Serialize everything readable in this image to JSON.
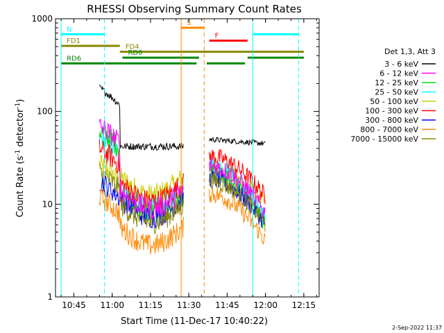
{
  "chart_data": {
    "type": "line",
    "title": "RHESSI Observing Summary Count Rates",
    "xlabel": "Start Time (11-Dec-17 10:40:22)",
    "ylabel": "Count Rate (s",
    "ylabel_sup": "-1",
    "ylabel_mid": " detector",
    "ylabel_end": ")",
    "yscale": "log",
    "ylim": [
      1,
      1000
    ],
    "xlim_minutes": [
      10.63,
      12.35
    ],
    "x_ticks": [
      "10:45",
      "11:00",
      "11:15",
      "11:30",
      "11:45",
      "12:00",
      "12:15"
    ],
    "y_ticks": [
      "1",
      "10",
      "100",
      "1000"
    ],
    "grid": false,
    "legend_title": "Det 1,3, Att 3",
    "legend_position": "right",
    "series": [
      {
        "name": "3 - 6 keV",
        "color": "#000000",
        "pre": 180,
        "mid": 42,
        "post": 50,
        "post_end": 45
      },
      {
        "name": "6 - 12 keV",
        "color": "#ff00ff",
        "pre": 70,
        "mid": 10,
        "post": 26,
        "post_end": 8
      },
      {
        "name": "12 - 25 keV",
        "color": "#00dd00",
        "pre": 62,
        "mid": 9,
        "post": 22,
        "post_end": 6
      },
      {
        "name": "25 - 50 keV",
        "color": "#00ffff",
        "pre": 52,
        "mid": 10,
        "post": 27,
        "post_end": 7
      },
      {
        "name": "50 - 100 keV",
        "color": "#cccc00",
        "pre": 27,
        "mid": 14,
        "post": 24,
        "post_end": 10
      },
      {
        "name": "100 - 300 keV",
        "color": "#ff0000",
        "pre": 40,
        "mid": 12,
        "post": 33,
        "post_end": 12
      },
      {
        "name": "300 - 800 keV",
        "color": "#0000ff",
        "pre": 18,
        "mid": 8,
        "post": 19,
        "post_end": 6
      },
      {
        "name": "800 - 7000 keV",
        "color": "#ff8800",
        "pre": 12,
        "mid": 4,
        "post": 13,
        "post_end": 4
      },
      {
        "name": "7000 - 15000 keV",
        "color": "#888800",
        "pre": 22,
        "mid": 7,
        "post": 18,
        "post_end": 6
      }
    ],
    "segments": [
      {
        "label": "N",
        "color": "#00ffff",
        "y_count": 680,
        "from": "10:40",
        "to": "10:57"
      },
      {
        "label": "",
        "color": "#00ffff",
        "y_count": 680,
        "from": "11:55",
        "to": "12:13"
      },
      {
        "label": "S",
        "color": "#ff8800",
        "y_count": 800,
        "from": "11:27",
        "to": "11:36"
      },
      {
        "label": "F",
        "color": "#ff0000",
        "y_count": 580,
        "from": "11:38",
        "to": "11:53"
      },
      {
        "label": "FD1",
        "color": "#888800",
        "y_count": 510,
        "from": "10:40",
        "to": "11:03"
      },
      {
        "label": "FD4",
        "color": "#888800",
        "y_count": 440,
        "from": "11:03",
        "to": "12:15"
      },
      {
        "label": "RD0",
        "color": "#008800",
        "y_count": 380,
        "from": "11:04",
        "to": "11:34"
      },
      {
        "label": "",
        "color": "#008800",
        "y_count": 380,
        "from": "11:53",
        "to": "12:15"
      },
      {
        "label": "RD6",
        "color": "#008800",
        "y_count": 330,
        "from": "10:40",
        "to": "11:33"
      },
      {
        "label": "",
        "color": "#008800",
        "y_count": 330,
        "from": "11:37",
        "to": "11:52"
      }
    ],
    "vlines": [
      {
        "at": "10:40",
        "color": "#00ffff",
        "style": "solid"
      },
      {
        "at": "10:57",
        "color": "#00ffff",
        "style": "dash"
      },
      {
        "at": "11:27",
        "color": "#ff8800",
        "style": "solid"
      },
      {
        "at": "11:36",
        "color": "#ff8800",
        "style": "dash"
      },
      {
        "at": "11:55",
        "color": "#00ffff",
        "style": "solid"
      },
      {
        "at": "12:13",
        "color": "#00ffff",
        "style": "dash"
      }
    ],
    "timestamp": "2-Sep-2022 11:37"
  }
}
